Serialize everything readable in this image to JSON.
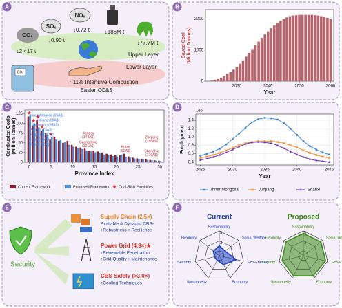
{
  "panel_labels": [
    "A",
    "B",
    "C",
    "D",
    "E",
    "F"
  ],
  "panel_a": {
    "emissions": [
      {
        "species": "CO₂",
        "label": "↓2,417 t"
      },
      {
        "species": "SOₓ",
        "label": "↓0.90 t"
      },
      {
        "species": "NOₓ",
        "label": "↓0.72 t"
      },
      {
        "label": "↓186M t"
      },
      {
        "label": "↓77.7M t"
      }
    ],
    "machine_label": "CO₂",
    "upper_layer": "Upper Layer",
    "lower_layer": "Lower Layer",
    "benefit": "↑ 11% Intensive Combustion",
    "benefit2": "Easier CC&S"
  },
  "chart_data": [
    {
      "type": "bar",
      "xlabel": "Year",
      "ylabel": [
        "Saved Coal",
        "(Million Tonnes)"
      ],
      "color": "#b8646c",
      "x": [
        2021,
        2022,
        2023,
        2024,
        2025,
        2026,
        2027,
        2028,
        2029,
        2030,
        2031,
        2032,
        2033,
        2034,
        2035,
        2036,
        2037,
        2038,
        2039,
        2040,
        2041,
        2042,
        2043,
        2044,
        2045,
        2046,
        2047,
        2048,
        2049,
        2050,
        2051,
        2052,
        2053,
        2054,
        2055,
        2056,
        2057,
        2058,
        2059,
        2060
      ],
      "values": [
        10,
        20,
        40,
        70,
        110,
        160,
        220,
        290,
        370,
        460,
        560,
        670,
        790,
        910,
        1030,
        1150,
        1270,
        1390,
        1500,
        1600,
        1700,
        1790,
        1870,
        1940,
        2000,
        2050,
        2090,
        2110,
        2120,
        2130,
        2130,
        2130,
        2130,
        2130,
        2120,
        2110,
        2090,
        2070,
        2040,
        2000
      ],
      "xlim": [
        2020,
        2061
      ],
      "xticks": [
        2030,
        2040,
        2050,
        2060
      ],
      "ylim": [
        0,
        2300
      ],
      "yticks": [
        0,
        1000,
        2000
      ]
    },
    {
      "type": "grouped_bar",
      "xlabel": "Province Index",
      "ylabel": [
        "Combusted Coals",
        "(Million Tonnes)"
      ],
      "x": [
        0,
        1,
        2,
        3,
        4,
        5,
        6,
        7,
        8,
        9,
        10,
        11,
        12,
        13,
        14,
        15,
        16,
        17,
        18,
        19,
        20,
        21,
        22,
        23,
        24,
        25,
        26,
        27,
        28,
        29,
        30
      ],
      "series": [
        {
          "name": "Current Framework",
          "color": "#8b1e2d",
          "values": [
            118,
            95,
            110,
            80,
            75,
            60,
            65,
            55,
            50,
            55,
            45,
            40,
            38,
            35,
            30,
            30,
            28,
            25,
            22,
            20,
            18,
            18,
            22,
            15,
            12,
            10,
            8,
            8,
            6,
            5,
            4
          ]
        },
        {
          "name": "Proposed Framework",
          "color": "#4a8fd4",
          "values": [
            120,
            100,
            90,
            85,
            70,
            65,
            60,
            58,
            52,
            45,
            40,
            36,
            34,
            30,
            28,
            26,
            24,
            20,
            18,
            16,
            15,
            20,
            14,
            12,
            10,
            9,
            7,
            6,
            5,
            4,
            3
          ]
        }
      ],
      "coal_rich": {
        "name": "Coal-Rich Provinces",
        "color": "#e0303a",
        "x": [
          0,
          1,
          2,
          3,
          5
        ]
      },
      "annotations": [
        {
          "text": [
            "InnerMongolia (96A$)"
          ],
          "color": "#3b7dd8"
        },
        {
          "text": [
            "Xinjiang (88A$)"
          ],
          "color": "#3b7dd8"
        },
        {
          "text": [
            "Shandong (85A$)"
          ],
          "color": "#3b7dd8"
        },
        {
          "text": [
            "Shanxi (73A$)"
          ],
          "color": "#3b7dd8"
        },
        {
          "text": [
            "Xinjiang (68A$)"
          ],
          "color": "#3b7dd8"
        },
        {
          "text": [
            "Hebei (56A$)"
          ],
          "color": "#3b7dd8"
        },
        {
          "text": [
            "Henan (52A$)"
          ],
          "color": "#3b7dd8"
        },
        {
          "text": [
            "Jiangsu",
            "(144A$)"
          ],
          "color": "#b02a3a"
        },
        {
          "text": [
            "Guangdong",
            "(101A$)"
          ],
          "color": "#b02a3a"
        },
        {
          "text": [
            "Hubei",
            "(92A$)"
          ],
          "color": "#b02a3a"
        },
        {
          "text": [
            "Zhejiang",
            "(118A$)"
          ],
          "color": "#b02a3a"
        },
        {
          "text": [
            "Shanghai",
            "(179A$)"
          ],
          "color": "#b02a3a"
        }
      ],
      "xlim": [
        -1,
        31
      ],
      "xticks": [
        0,
        5,
        10,
        15,
        20,
        25,
        30
      ],
      "ylim": [
        0,
        135
      ],
      "yticks": [
        0,
        25,
        50,
        75,
        100,
        125
      ]
    },
    {
      "type": "line",
      "xlabel": "Year",
      "ylabel": "Employment",
      "offset_label": "1e5",
      "x": [
        2025,
        2026,
        2027,
        2028,
        2029,
        2030,
        2031,
        2032,
        2033,
        2034,
        2035,
        2036,
        2037,
        2038,
        2039,
        2040,
        2041,
        2042,
        2043,
        2044,
        2045
      ],
      "series": [
        {
          "name": "Inner Mongolia",
          "color": "#3b86d6",
          "marker": "circle",
          "values": [
            0.55,
            0.6,
            0.65,
            0.72,
            0.82,
            0.95,
            1.08,
            1.22,
            1.35,
            1.43,
            1.46,
            1.45,
            1.42,
            1.33,
            1.2,
            1.05,
            0.9,
            0.78,
            0.7,
            0.63,
            0.58
          ]
        },
        {
          "name": "Xinjiang",
          "color": "#f08a2c",
          "marker": "x",
          "values": [
            0.5,
            0.53,
            0.57,
            0.62,
            0.68,
            0.74,
            0.8,
            0.85,
            0.88,
            0.9,
            0.9,
            0.9,
            0.88,
            0.85,
            0.8,
            0.75,
            0.68,
            0.62,
            0.57,
            0.53,
            0.5
          ]
        },
        {
          "name": "Shanxi",
          "color": "#6a2bb8",
          "marker": "triangle",
          "values": [
            0.45,
            0.48,
            0.52,
            0.57,
            0.63,
            0.7,
            0.77,
            0.83,
            0.87,
            0.88,
            0.87,
            0.85,
            0.8,
            0.73,
            0.65,
            0.58,
            0.52,
            0.47,
            0.44,
            0.42,
            0.4
          ]
        }
      ],
      "xlim": [
        2024.3,
        2045.7
      ],
      "xticks": [
        2025,
        2030,
        2035,
        2040,
        2045
      ],
      "ylim": [
        0.33,
        1.55
      ],
      "yticks": [
        0.4,
        0.6,
        0.8,
        {
          "value": 1,
          "label": "1.0"
        },
        1.2,
        1.4
      ],
      "grid": true
    },
    {
      "type": "radar",
      "title": "Current",
      "color": "#1f3fbf",
      "categories": [
        "Sustainability",
        "Social Welfare",
        "Eco-Friendly",
        "Economy",
        "Spontaneity",
        "Security",
        "Flexibility"
      ],
      "values": [
        2,
        1.5,
        3.5,
        2,
        1,
        1,
        1.5
      ],
      "rlim": [
        0,
        5
      ],
      "rticks": [
        1,
        3,
        5
      ]
    },
    {
      "type": "radar",
      "title": "Proposed",
      "color": "#3d8a1a",
      "categories": [
        "Sustainability",
        "Social Welfare",
        "Eco-Friendly",
        "Economy",
        "Spontaneity",
        "Security",
        "Flexibility"
      ],
      "values": [
        4.5,
        4.5,
        4.6,
        4.5,
        4.5,
        4.4,
        4.5
      ],
      "rlim": [
        0,
        5
      ],
      "rticks": [
        1,
        3,
        5
      ]
    }
  ],
  "panel_e": {
    "center": "Security",
    "items": [
      {
        "title": "Supply Chain (2.5×)",
        "color": "#e8801e",
        "lines": [
          "Available & Dynamic CBSs",
          "↑Robustness ↑ Resilience"
        ]
      },
      {
        "title": "Power Grid (4.9×)★",
        "color": "#d6322a",
        "lines": [
          "↑Renewable Penetration",
          "↑Grid Quality ↑ Maintenance"
        ]
      },
      {
        "title": "CBS Safety (>3.0×)",
        "color": "#d6322a",
        "lines": [
          "↑Cooling Techniques"
        ]
      }
    ]
  }
}
